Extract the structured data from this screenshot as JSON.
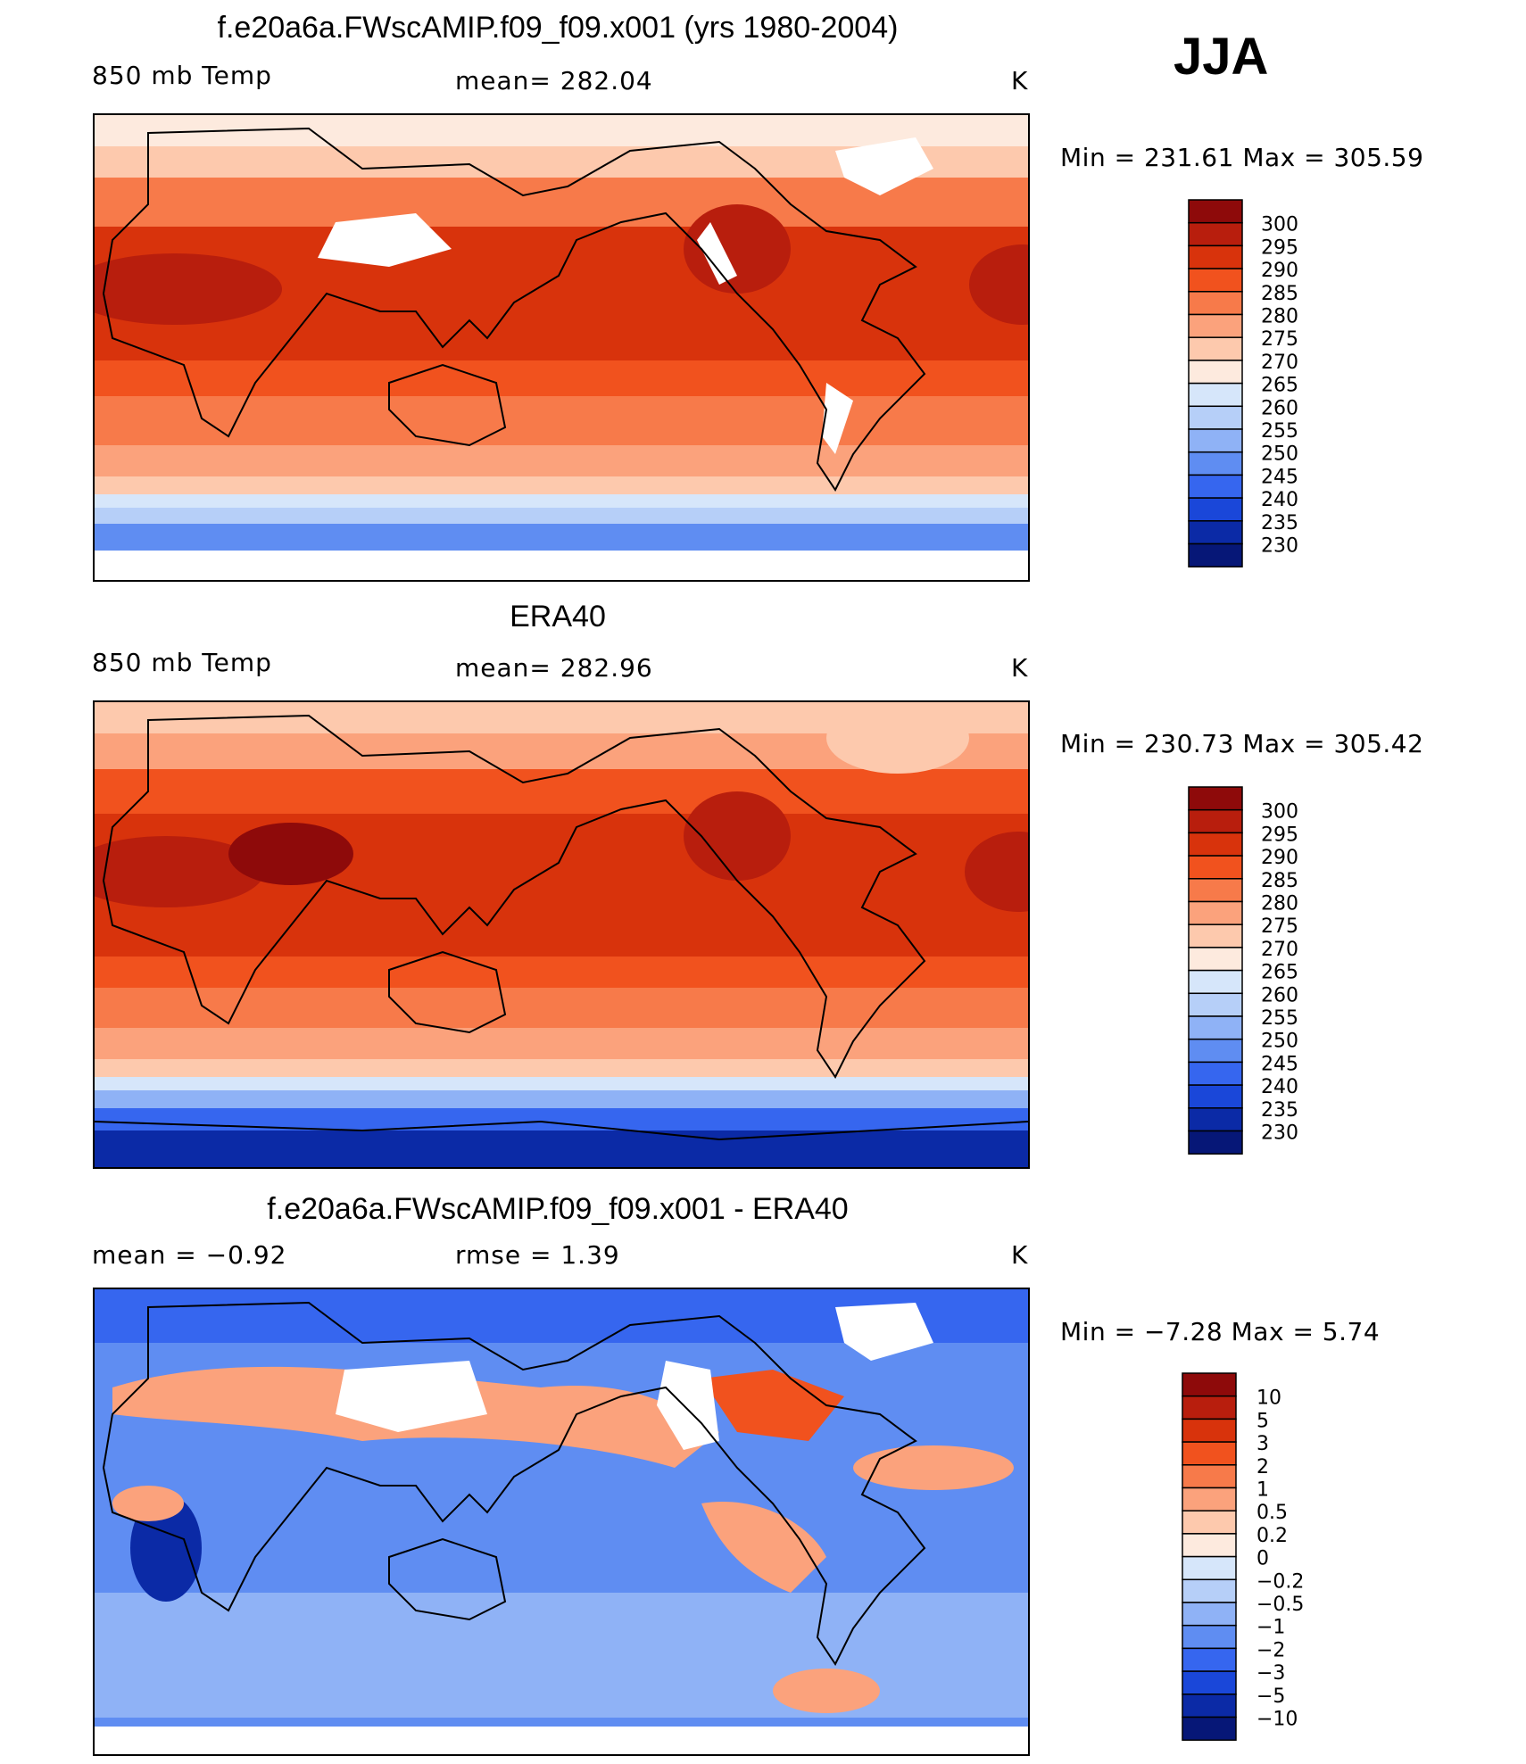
{
  "season": "JJA",
  "panels": [
    {
      "title": "f.e20a6a.FWscAMIP.f09_f09.x001 (yrs 1980-2004)",
      "left_label": "850 mb Temp",
      "center_label": "mean= 282.04",
      "right_label": "K",
      "minmax": "Min  =  231.61  Max  =  305.59",
      "colorbar_levels": [
        "300",
        "295",
        "290",
        "285",
        "280",
        "275",
        "270",
        "265",
        "260",
        "255",
        "250",
        "245",
        "240",
        "235",
        "230"
      ],
      "colorbar_colors": [
        "#8e0a0a",
        "#b81e0d",
        "#d8330c",
        "#f1521e",
        "#f77a4a",
        "#fba27c",
        "#fdc9ad",
        "#fdeade",
        "#d6e6fa",
        "#b6cff8",
        "#8fb2f6",
        "#5f8df2",
        "#3666ef",
        "#1a47d9",
        "#0b2aa6",
        "#061777"
      ],
      "chart_data": {
        "type": "heatmap",
        "title": "f.e20a6a.FWscAMIP.f09_f09.x001 (yrs 1980-2004)",
        "variable": "850 mb Temp",
        "units": "K",
        "mean": 282.04,
        "min": 231.61,
        "max": 305.59,
        "contour_levels": [
          230,
          235,
          240,
          245,
          250,
          255,
          260,
          265,
          270,
          275,
          280,
          285,
          290,
          295,
          300
        ]
      }
    },
    {
      "title": "ERA40",
      "left_label": "850 mb Temp",
      "center_label": "mean= 282.96",
      "right_label": "K",
      "minmax": "Min  =  230.73  Max  =  305.42",
      "colorbar_levels": [
        "300",
        "295",
        "290",
        "285",
        "280",
        "275",
        "270",
        "265",
        "260",
        "255",
        "250",
        "245",
        "240",
        "235",
        "230"
      ],
      "colorbar_colors": [
        "#8e0a0a",
        "#b81e0d",
        "#d8330c",
        "#f1521e",
        "#f77a4a",
        "#fba27c",
        "#fdc9ad",
        "#fdeade",
        "#d6e6fa",
        "#b6cff8",
        "#8fb2f6",
        "#5f8df2",
        "#3666ef",
        "#1a47d9",
        "#0b2aa6",
        "#061777"
      ],
      "chart_data": {
        "type": "heatmap",
        "title": "ERA40",
        "variable": "850 mb Temp",
        "units": "K",
        "mean": 282.96,
        "min": 230.73,
        "max": 305.42,
        "contour_levels": [
          230,
          235,
          240,
          245,
          250,
          255,
          260,
          265,
          270,
          275,
          280,
          285,
          290,
          295,
          300
        ]
      }
    },
    {
      "title": "f.e20a6a.FWscAMIP.f09_f09.x001 - ERA40",
      "left_label": "mean =    −0.92",
      "center_label": "rmse =     1.39",
      "right_label": "K",
      "minmax": "Min  =    −7.28  Max  =      5.74",
      "colorbar_levels": [
        "10",
        "5",
        "3",
        "2",
        "1",
        "0.5",
        "0.2",
        "0",
        "−0.2",
        "−0.5",
        "−1",
        "−2",
        "−3",
        "−5",
        "−10"
      ],
      "colorbar_colors": [
        "#8e0a0a",
        "#b81e0d",
        "#d8330c",
        "#f1521e",
        "#f77a4a",
        "#fba27c",
        "#fdc9ad",
        "#fdeade",
        "#d6e6fa",
        "#b6cff8",
        "#8fb2f6",
        "#5f8df2",
        "#3666ef",
        "#1a47d9",
        "#0b2aa6",
        "#061777"
      ],
      "chart_data": {
        "type": "heatmap",
        "title": "f.e20a6a.FWscAMIP.f09_f09.x001 - ERA40",
        "units": "K",
        "mean": -0.92,
        "rmse": 1.39,
        "min": -7.28,
        "max": 5.74,
        "contour_levels": [
          -10,
          -5,
          -3,
          -2,
          -1,
          -0.5,
          -0.2,
          0,
          0.2,
          0.5,
          1,
          2,
          3,
          5,
          10
        ]
      }
    }
  ]
}
